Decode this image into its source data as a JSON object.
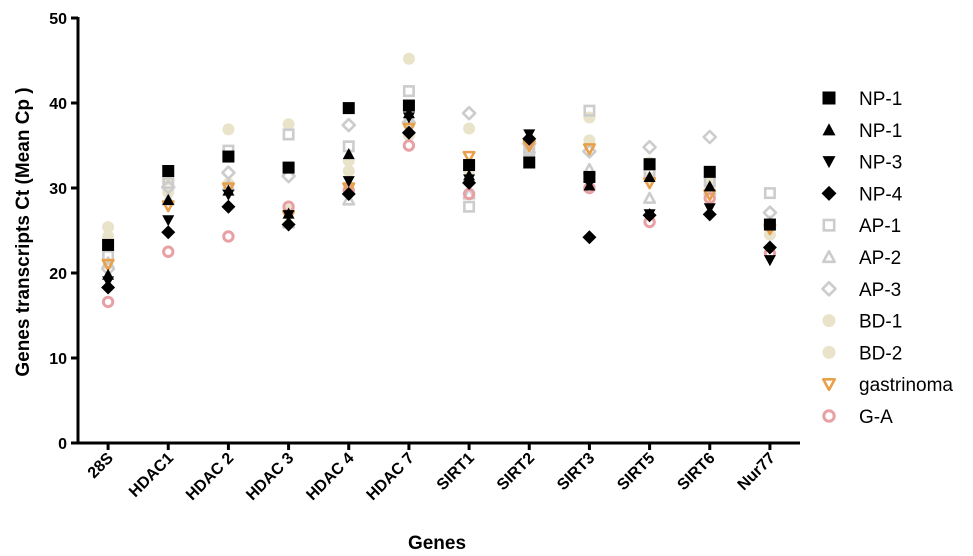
{
  "chart_data": {
    "type": "scatter",
    "xlabel": "Genes",
    "ylabel": "Genes transcripts Ct (Mean Cp )",
    "ylim": [
      0,
      50
    ],
    "yticks": [
      0,
      10,
      20,
      30,
      40,
      50
    ],
    "grid": false,
    "legend_position": "right",
    "categories": [
      "28S",
      "HDAC1",
      "HDAC 2",
      "HDAC 3",
      "HDAC 4",
      "HDAC 7",
      "SIRT1",
      "SIRT2",
      "SIRT3",
      "SIRT5",
      "SIRT6",
      "Nur77"
    ],
    "series": [
      {
        "name": "NP-1",
        "marker": "square-filled",
        "color": "#000000",
        "values": [
          23.3,
          32.0,
          33.7,
          32.4,
          39.4,
          39.7,
          32.7,
          33.0,
          31.3,
          32.8,
          31.9,
          25.7
        ]
      },
      {
        "name": "NP-1",
        "marker": "triangle-up-filled",
        "color": "#000000",
        "values": [
          19.8,
          28.6,
          29.7,
          27.0,
          34.0,
          38.8,
          31.5,
          36.2,
          30.3,
          31.3,
          30.2,
          25.8
        ]
      },
      {
        "name": "NP-3",
        "marker": "triangle-down-filled",
        "color": "#000000",
        "values": [
          19.0,
          26.2,
          29.2,
          26.8,
          30.8,
          38.3,
          31.0,
          36.3,
          30.5,
          26.9,
          27.6,
          21.5
        ]
      },
      {
        "name": "NP-4",
        "marker": "diamond-filled",
        "color": "#000000",
        "values": [
          18.3,
          24.8,
          27.8,
          25.7,
          29.3,
          36.5,
          30.6,
          35.8,
          24.2,
          26.8,
          26.9,
          23.0
        ]
      },
      {
        "name": "AP-1",
        "marker": "square-open",
        "color": "#cccccc",
        "values": [
          22.0,
          30.6,
          34.4,
          36.3,
          34.9,
          41.4,
          27.8,
          34.4,
          39.1,
          31.6,
          30.8,
          29.4
        ]
      },
      {
        "name": "AP-2",
        "marker": "triangle-up-open",
        "color": "#cccccc",
        "values": [
          21.2,
          28.6,
          30.3,
          25.9,
          28.6,
          38.2,
          29.3,
          34.7,
          32.2,
          28.8,
          29.8,
          26.0
        ]
      },
      {
        "name": "AP-3",
        "marker": "diamond-open",
        "color": "#cccccc",
        "values": [
          20.5,
          30.1,
          31.8,
          31.4,
          37.4,
          37.7,
          38.8,
          35.2,
          34.3,
          34.8,
          36.0,
          27.1
        ]
      },
      {
        "name": "BD-1",
        "marker": "circle-filled",
        "color": "#e9e3c9",
        "values": [
          25.4,
          31.0,
          36.9,
          37.5,
          32.0,
          45.2,
          37.0,
          34.6,
          38.3,
          33.0,
          31.5,
          25.6
        ]
      },
      {
        "name": "BD-2",
        "marker": "circle-filled",
        "color": "#e9e3c9",
        "values": [
          24.3,
          29.5,
          30.5,
          27.4,
          33.2,
          36.2,
          32.1,
          35.7,
          35.6,
          31.2,
          30.2,
          24.5
        ]
      },
      {
        "name": "gastrinoma",
        "marker": "triangle-down-open",
        "color": "#e8a04a",
        "values": [
          21.0,
          27.9,
          30.0,
          26.7,
          30.0,
          37.0,
          33.7,
          35.0,
          34.6,
          30.6,
          29.2,
          25.2
        ]
      },
      {
        "name": "G-A",
        "marker": "circle-open",
        "color": "#e8a0a4",
        "values": [
          16.6,
          22.5,
          24.3,
          27.8,
          29.7,
          35.0,
          29.3,
          35.5,
          30.0,
          26.0,
          28.8,
          22.3
        ]
      }
    ]
  }
}
